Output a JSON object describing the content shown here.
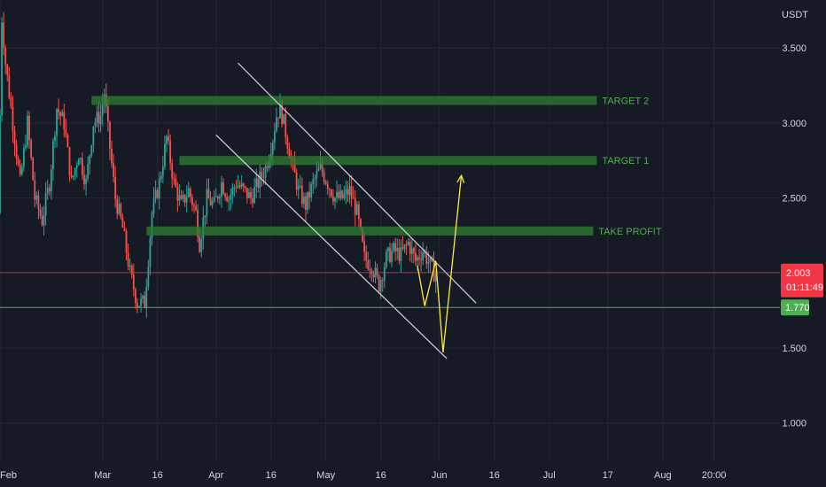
{
  "chart_data": {
    "type": "candlestick",
    "y_axis": {
      "unit_label": "USDT",
      "ticks": [
        {
          "value": 3.5,
          "label": "3.500"
        },
        {
          "value": 3.0,
          "label": "3.000"
        },
        {
          "value": 2.5,
          "label": "2.500"
        },
        {
          "value": 1.5,
          "label": "1.500"
        },
        {
          "value": 1.0,
          "label": "1.000"
        }
      ],
      "range": [
        0.75,
        3.82
      ]
    },
    "x_axis": {
      "ticks": [
        {
          "day": 0,
          "label": "Feb"
        },
        {
          "day": 28,
          "label": "Mar"
        },
        {
          "day": 43,
          "label": "16"
        },
        {
          "day": 59,
          "label": "Apr"
        },
        {
          "day": 74,
          "label": "16"
        },
        {
          "day": 89,
          "label": "May"
        },
        {
          "day": 104,
          "label": "16"
        },
        {
          "day": 120,
          "label": "Jun"
        },
        {
          "day": 135,
          "label": "16"
        },
        {
          "day": 150,
          "label": "Jul"
        },
        {
          "day": 166,
          "label": "17"
        },
        {
          "day": 181,
          "label": "Aug"
        },
        {
          "day": 195,
          "label": "20:00"
        }
      ],
      "range": [
        0,
        213
      ]
    },
    "current_price": {
      "value": 2.003,
      "label": "2.003",
      "countdown": "01:11:49",
      "color": "#f23645"
    },
    "support": {
      "value": 1.77,
      "label": "1.770",
      "color": "#4caf50"
    },
    "zones": [
      {
        "name": "TARGET 2",
        "start_day": 25,
        "end_day": 163,
        "low": 3.12,
        "high": 3.18
      },
      {
        "name": "TARGET 1",
        "start_day": 49,
        "end_day": 163,
        "low": 2.72,
        "high": 2.78
      },
      {
        "name": "TAKE PROFIT",
        "start_day": 40,
        "end_day": 162,
        "low": 2.25,
        "high": 2.31
      }
    ],
    "channel_lines": [
      {
        "from": [
          65,
          3.4
        ],
        "to": [
          130,
          1.8
        ]
      },
      {
        "from": [
          59,
          2.92
        ],
        "to": [
          122,
          1.43
        ]
      }
    ],
    "projection": {
      "points": [
        [
          114,
          2.05
        ],
        [
          116,
          1.78
        ],
        [
          119,
          2.08
        ],
        [
          121,
          1.47
        ],
        [
          126,
          2.65
        ]
      ],
      "color": "#ffeb3b"
    },
    "price_path": [
      [
        0,
        2.4
      ],
      [
        1,
        3.7
      ],
      [
        2,
        3.4
      ],
      [
        3,
        3.2
      ],
      [
        4,
        3.0
      ],
      [
        6,
        2.6
      ],
      [
        8,
        3.0
      ],
      [
        10,
        2.5
      ],
      [
        12,
        2.35
      ],
      [
        14,
        2.6
      ],
      [
        16,
        3.1
      ],
      [
        18,
        3.0
      ],
      [
        20,
        2.6
      ],
      [
        22,
        2.8
      ],
      [
        24,
        2.6
      ],
      [
        26,
        3.0
      ],
      [
        28,
        3.05
      ],
      [
        29,
        3.2
      ],
      [
        30,
        2.95
      ],
      [
        32,
        2.5
      ],
      [
        34,
        2.3
      ],
      [
        36,
        2.0
      ],
      [
        38,
        1.8
      ],
      [
        40,
        1.8
      ],
      [
        42,
        2.4
      ],
      [
        44,
        2.6
      ],
      [
        46,
        2.9
      ],
      [
        48,
        2.6
      ],
      [
        50,
        2.45
      ],
      [
        52,
        2.55
      ],
      [
        54,
        2.4
      ],
      [
        55,
        2.2
      ],
      [
        57,
        2.5
      ],
      [
        59,
        2.45
      ],
      [
        61,
        2.6
      ],
      [
        63,
        2.5
      ],
      [
        65,
        2.6
      ],
      [
        67,
        2.55
      ],
      [
        69,
        2.5
      ],
      [
        71,
        2.6
      ],
      [
        73,
        2.7
      ],
      [
        75,
        2.9
      ],
      [
        76,
        3.05
      ],
      [
        77,
        3.1
      ],
      [
        78,
        3.0
      ],
      [
        80,
        2.75
      ],
      [
        82,
        2.55
      ],
      [
        84,
        2.45
      ],
      [
        86,
        2.6
      ],
      [
        88,
        2.7
      ],
      [
        90,
        2.6
      ],
      [
        92,
        2.5
      ],
      [
        94,
        2.5
      ],
      [
        96,
        2.55
      ],
      [
        98,
        2.4
      ],
      [
        100,
        2.1
      ],
      [
        102,
        2.05
      ],
      [
        104,
        1.92
      ],
      [
        106,
        2.1
      ],
      [
        108,
        2.15
      ],
      [
        110,
        2.12
      ],
      [
        112,
        2.2
      ],
      [
        114,
        2.08
      ],
      [
        116,
        2.15
      ],
      [
        118,
        2.05
      ],
      [
        119,
        2.0
      ]
    ]
  },
  "colors": {
    "background": "#161a25",
    "grid": "#242832",
    "up": "#26a69a",
    "down": "#ef5350",
    "zone_fill": "#2e7d32",
    "zone_text": "#4caf50",
    "channel": "#d1d4dc"
  }
}
